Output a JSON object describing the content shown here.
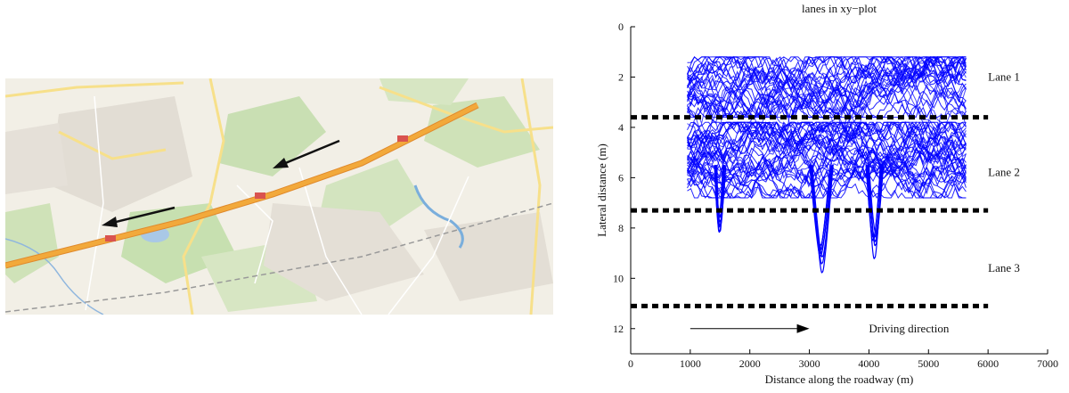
{
  "map": {
    "road_color": "#f2a93b",
    "arrows": [
      "arrow-icon",
      "arrow-icon"
    ]
  },
  "chart_data": {
    "type": "line",
    "title": "lanes in xy−plot",
    "xlabel": "Distance along the roadway (m)",
    "ylabel": "Lateral distance (m)",
    "xlim": [
      0,
      7000
    ],
    "ylim": [
      0,
      13
    ],
    "y_inverted": true,
    "x_ticks": [
      0,
      1000,
      2000,
      3000,
      4000,
      5000,
      6000,
      7000
    ],
    "y_ticks": [
      0,
      2,
      4,
      6,
      8,
      10,
      12
    ],
    "grid": false,
    "trajectory_color": "#0000ff",
    "trajectory_x_range": [
      950,
      5650
    ],
    "lane_boundaries": [
      {
        "x": [
          0,
          6000
        ],
        "y": 3.6
      },
      {
        "x": [
          0,
          6000
        ],
        "y": 7.3
      },
      {
        "x": [
          0,
          6000
        ],
        "y": 11.1
      }
    ],
    "lane_centers": [
      {
        "name": "Lane 1",
        "band": [
          1.4,
          3.4
        ]
      },
      {
        "name": "Lane 2",
        "band": [
          4.0,
          6.6
        ]
      },
      {
        "name": "Lane 3",
        "band": [
          7.4,
          10.8
        ]
      }
    ],
    "lane_change_dips": [
      {
        "x": [
          1400,
          1600
        ],
        "max_y": 8.2
      },
      {
        "x": [
          3000,
          3400
        ],
        "max_y": 10.2
      },
      {
        "x": [
          3950,
          4250
        ],
        "max_y": 9.6
      }
    ],
    "annotations": [
      {
        "text": "Lane 1",
        "x": 6000,
        "y": 2.0
      },
      {
        "text": "Lane 2",
        "x": 6000,
        "y": 5.8
      },
      {
        "text": "Lane 3",
        "x": 6000,
        "y": 9.6
      },
      {
        "text": "Driving direction",
        "x": 4000,
        "y": 12.0
      }
    ],
    "direction_arrow": {
      "x": [
        1000,
        3000
      ],
      "y": 12.0
    }
  }
}
